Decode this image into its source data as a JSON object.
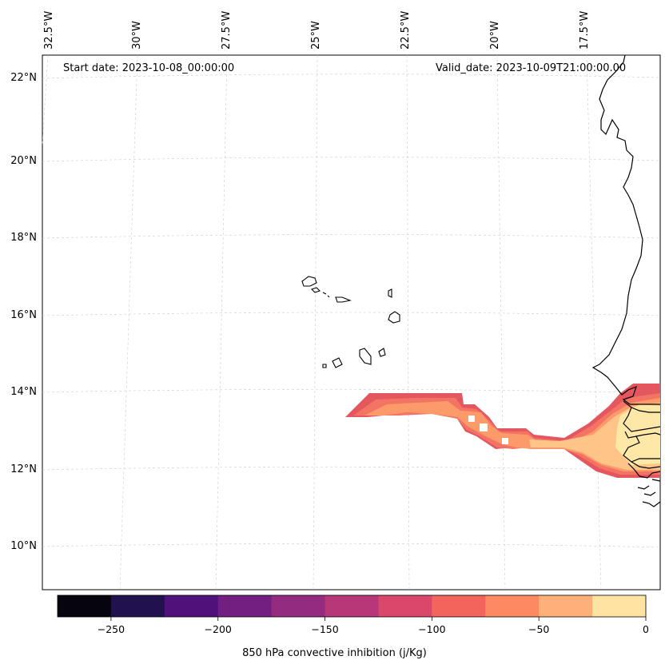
{
  "map": {
    "start_label": "Start date: 2023-10-08_00:00:00",
    "valid_label": "Valid_date: 2023-10-09T21:00:00.00",
    "lon_labels": [
      "32.5°W",
      "30°W",
      "27.5°W",
      "25°W",
      "22.5°W",
      "20°W",
      "17.5°W"
    ],
    "lat_labels": [
      "22°N",
      "20°N",
      "18°N",
      "16°N",
      "14°N",
      "12°N",
      "10°N"
    ],
    "field": "850 hPa convective inhibition",
    "field_colors": [
      "#e4575f",
      "#f47463",
      "#fd9a6a",
      "#fec488",
      "#fde8a8"
    ]
  },
  "colorbar": {
    "label": "850 hPa convective inhibition (j/Kg)",
    "ticks": [
      "−250",
      "−200",
      "−150",
      "−100",
      "−50",
      "0"
    ],
    "colors": [
      "#05040f",
      "#21114e",
      "#4f127b",
      "#721f81",
      "#932b80",
      "#b73779",
      "#db476a",
      "#f3655c",
      "#fc8961",
      "#feb078",
      "#fee3a2"
    ]
  }
}
